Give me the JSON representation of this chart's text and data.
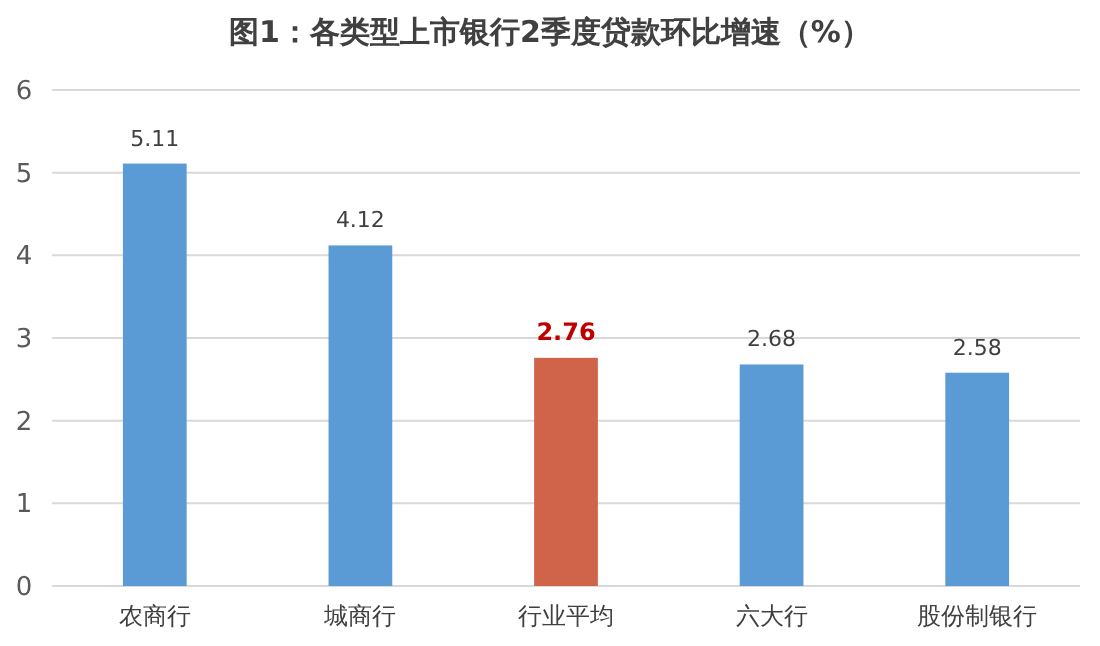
{
  "chart_data": {
    "type": "bar",
    "title": "图1：各类型上市银行2季度贷款环比增速（%）",
    "categories": [
      "农商行",
      "城商行",
      "行业平均",
      "六大行",
      "股份制银行"
    ],
    "values": [
      5.11,
      4.12,
      2.76,
      2.68,
      2.58
    ],
    "colors": [
      "#5b9bd5",
      "#5b9bd5",
      "#d0644a",
      "#5b9bd5",
      "#5b9bd5"
    ],
    "ylim": [
      0,
      6
    ],
    "yticks": [
      0,
      1,
      2,
      3,
      4,
      5,
      6
    ],
    "grid": "y",
    "data_labels": true
  }
}
